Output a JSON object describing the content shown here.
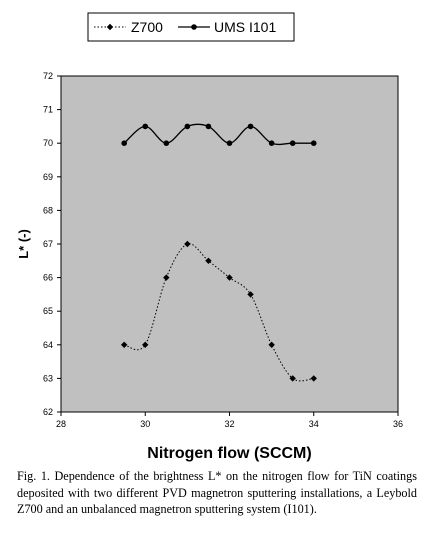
{
  "chart_data": {
    "type": "line",
    "title": "",
    "xlabel": "Nitrogen flow (SCCM)",
    "ylabel": "L* (-)",
    "xlim": [
      28,
      36
    ],
    "ylim": [
      62,
      72
    ],
    "xticks": [
      "28",
      "30",
      "32",
      "34",
      "36"
    ],
    "yticks": [
      "62",
      "63",
      "64",
      "65",
      "66",
      "67",
      "68",
      "69",
      "70",
      "71",
      "72"
    ],
    "grid": false,
    "legend": "top",
    "plot_background": "#c0c0c0",
    "series": [
      {
        "name": "Z700",
        "style": "dotted",
        "marker": "diamond",
        "x": [
          29.5,
          30,
          30.5,
          31,
          31.5,
          32,
          32.5,
          33,
          33.5,
          34
        ],
        "y": [
          64,
          64,
          66,
          67,
          66.5,
          66,
          65.5,
          64,
          63,
          63
        ]
      },
      {
        "name": "UMS I101",
        "style": "solid",
        "marker": "circle",
        "x": [
          29.5,
          30,
          30.5,
          31,
          31.5,
          32,
          32.5,
          33,
          33.5,
          34
        ],
        "y": [
          70,
          70.5,
          70,
          70.5,
          70.5,
          70,
          70.5,
          70,
          70,
          70
        ]
      }
    ]
  },
  "caption": "Fig. 1. Dependence of the brightness L* on the nitrogen flow for TiN coatings deposited with two different PVD magnetron sputtering installations, a Leybold Z700 and an unbalanced magnetron sputtering system (I101)."
}
